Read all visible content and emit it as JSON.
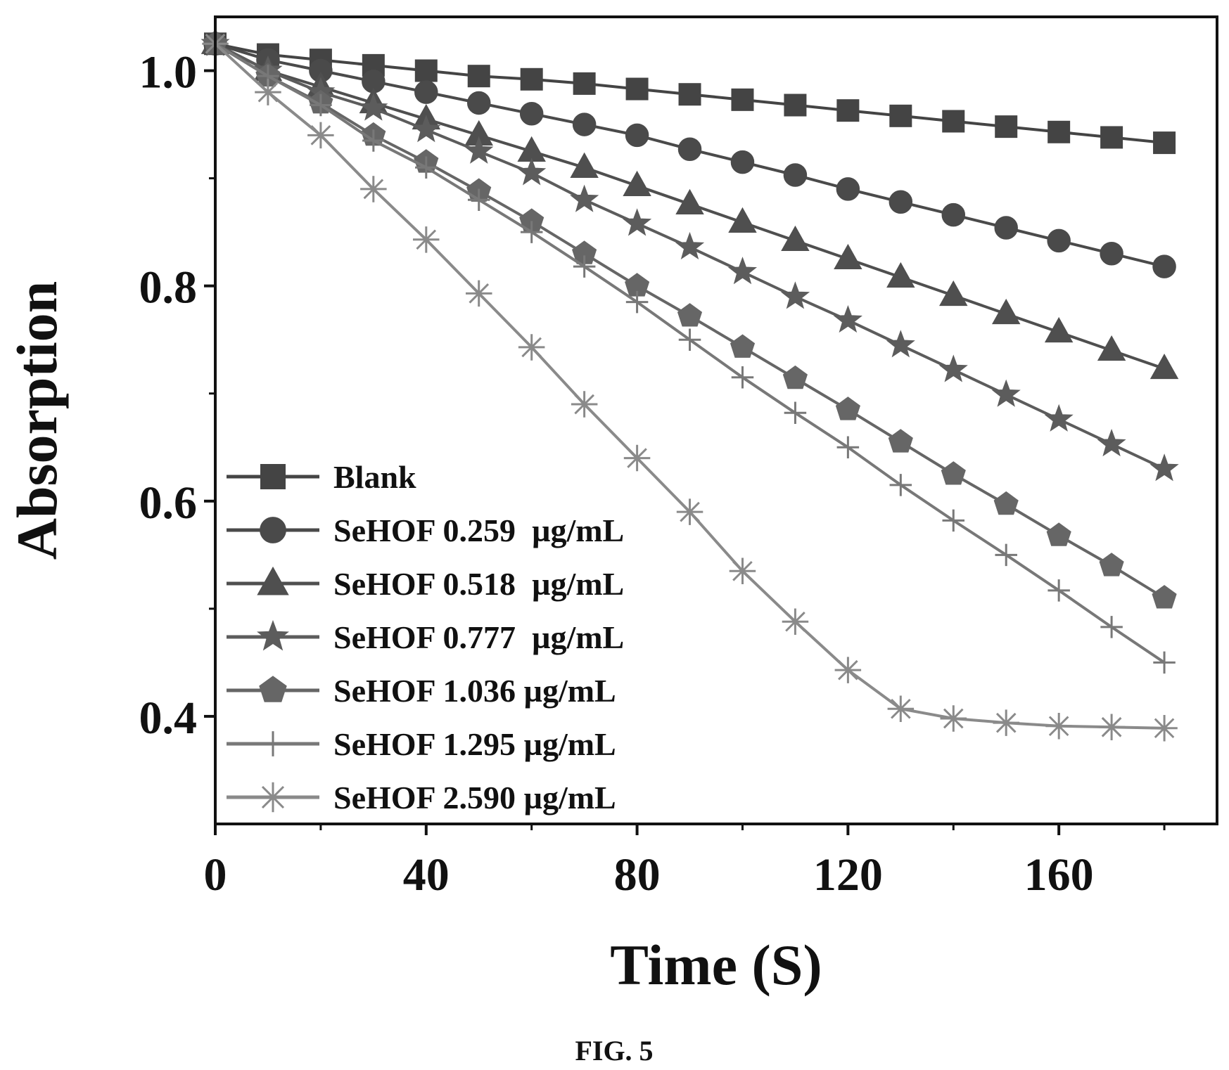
{
  "figure_caption": "FIG. 5",
  "colors": {
    "frame": "#111111",
    "background": "#ffffff",
    "series": [
      "#444444",
      "#4a4a4a",
      "#4f4f4f",
      "#5c5c5c",
      "#666666",
      "#787878",
      "#8a8a8a"
    ]
  },
  "chart_data": {
    "type": "line",
    "xlabel": "Time (S)",
    "ylabel": "Absorption",
    "xlim": [
      0,
      190
    ],
    "ylim": [
      0.3,
      1.05
    ],
    "xticks": [
      0,
      40,
      80,
      120,
      160
    ],
    "xtick_labels": [
      "0",
      "40",
      "80",
      "120",
      "160"
    ],
    "yticks": [
      0.4,
      0.6,
      0.8,
      1.0
    ],
    "ytick_labels": [
      "0.4",
      "0.6",
      "0.8",
      "1.0"
    ],
    "grid": false,
    "legend_position": "bottom-left",
    "x": [
      0,
      10,
      20,
      30,
      40,
      50,
      60,
      70,
      80,
      90,
      100,
      110,
      120,
      130,
      140,
      150,
      160,
      170,
      180
    ],
    "series": [
      {
        "name": "Blank",
        "marker": "square",
        "color": "#444444",
        "values": [
          1.025,
          1.015,
          1.01,
          1.005,
          1.0,
          0.995,
          0.992,
          0.988,
          0.983,
          0.978,
          0.973,
          0.968,
          0.963,
          0.958,
          0.953,
          0.948,
          0.943,
          0.938,
          0.933
        ]
      },
      {
        "name": "SeHOF 0.259  µg/mL",
        "marker": "circle",
        "color": "#4a4a4a",
        "values": [
          1.025,
          1.01,
          1.0,
          0.99,
          0.98,
          0.97,
          0.96,
          0.95,
          0.94,
          0.927,
          0.915,
          0.903,
          0.89,
          0.878,
          0.866,
          0.854,
          0.842,
          0.83,
          0.818
        ]
      },
      {
        "name": "SeHOF 0.518  µg/mL",
        "marker": "triangle",
        "color": "#4f4f4f",
        "values": [
          1.025,
          1.0,
          0.985,
          0.97,
          0.955,
          0.94,
          0.925,
          0.91,
          0.893,
          0.876,
          0.859,
          0.842,
          0.825,
          0.808,
          0.791,
          0.774,
          0.757,
          0.74,
          0.723
        ]
      },
      {
        "name": "SeHOF 0.777  µg/mL",
        "marker": "star",
        "color": "#5c5c5c",
        "values": [
          1.025,
          1.0,
          0.98,
          0.965,
          0.945,
          0.925,
          0.905,
          0.88,
          0.858,
          0.836,
          0.813,
          0.79,
          0.768,
          0.745,
          0.722,
          0.699,
          0.676,
          0.653,
          0.63
        ]
      },
      {
        "name": "SeHOF 1.036 µg/mL",
        "marker": "pentagon",
        "color": "#666666",
        "values": [
          1.025,
          0.995,
          0.97,
          0.94,
          0.915,
          0.888,
          0.86,
          0.83,
          0.8,
          0.772,
          0.743,
          0.714,
          0.685,
          0.655,
          0.625,
          0.597,
          0.568,
          0.54,
          0.51
        ]
      },
      {
        "name": "SeHOF 1.295 µg/mL",
        "marker": "plus",
        "color": "#787878",
        "values": [
          1.025,
          0.995,
          0.968,
          0.935,
          0.91,
          0.88,
          0.85,
          0.818,
          0.785,
          0.75,
          0.715,
          0.682,
          0.65,
          0.615,
          0.582,
          0.55,
          0.517,
          0.483,
          0.45
        ]
      },
      {
        "name": "SeHOF 2.590 µg/mL",
        "marker": "asterisk",
        "color": "#8a8a8a",
        "values": [
          1.025,
          0.98,
          0.94,
          0.89,
          0.843,
          0.793,
          0.743,
          0.69,
          0.64,
          0.59,
          0.535,
          0.488,
          0.443,
          0.407,
          0.398,
          0.394,
          0.391,
          0.39,
          0.389
        ]
      }
    ]
  }
}
